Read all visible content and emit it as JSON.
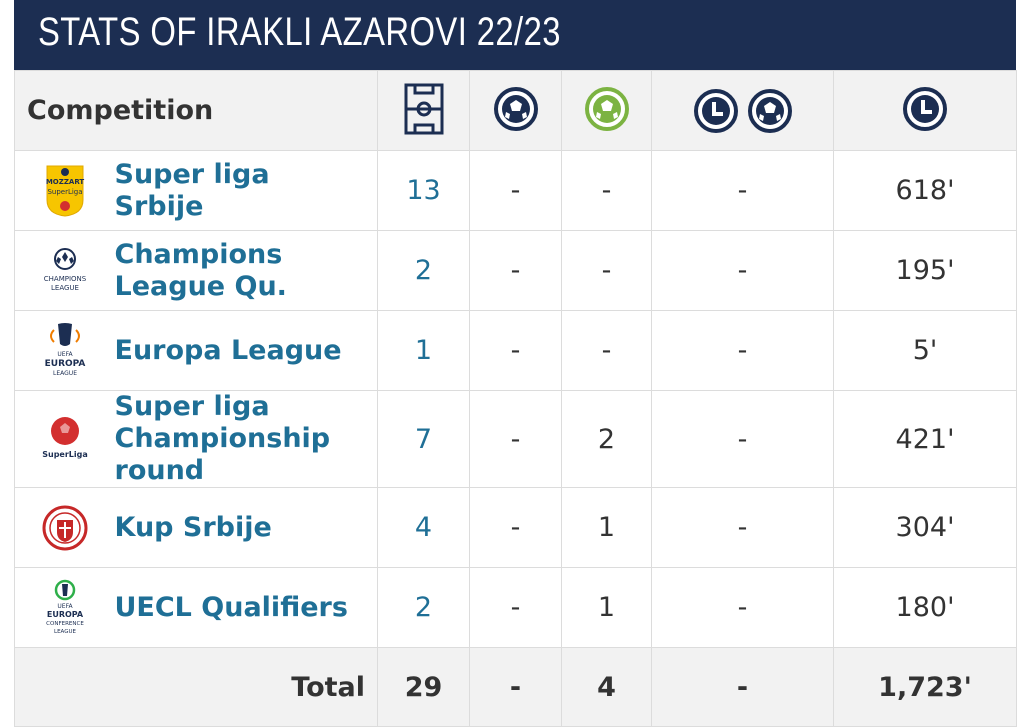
{
  "title": "STATS OF IRAKLI AZAROVI 22/23",
  "header": {
    "competition": "Competition",
    "icons": [
      "pitch-icon",
      "ball-icon",
      "green-ball-icon",
      "clock-icon",
      "ball-icon",
      "clock-icon"
    ]
  },
  "rows": [
    {
      "name_lines": [
        "Super liga",
        "Srbije"
      ],
      "logo": "mozzart-superliga-logo",
      "logo_text": [
        "MOZZART",
        "SuperLiga"
      ],
      "apps": "13",
      "c2": "-",
      "c3": "-",
      "c4": "-",
      "minutes": "618'"
    },
    {
      "name_lines": [
        "Champions",
        "League Qu."
      ],
      "logo": "champions-league-logo",
      "logo_text": [
        "CHAMPIONS",
        "LEAGUE"
      ],
      "apps": "2",
      "c2": "-",
      "c3": "-",
      "c4": "-",
      "minutes": "195'"
    },
    {
      "name_lines": [
        "Europa League"
      ],
      "logo": "europa-league-logo",
      "logo_text": [
        "UEFA",
        "EUROPA",
        "LEAGUE"
      ],
      "apps": "1",
      "c2": "-",
      "c3": "-",
      "c4": "-",
      "minutes": "5'"
    },
    {
      "name_lines": [
        "Super liga",
        "Championship",
        "round"
      ],
      "logo": "superliga-logo",
      "logo_text": [
        "SuperLiga"
      ],
      "apps": "7",
      "c2": "-",
      "c3": "2",
      "c4": "-",
      "minutes": "421'"
    },
    {
      "name_lines": [
        "Kup Srbije"
      ],
      "logo": "kup-srbije-logo",
      "logo_text": [],
      "apps": "4",
      "c2": "-",
      "c3": "1",
      "c4": "-",
      "minutes": "304'"
    },
    {
      "name_lines": [
        "UECL Qualifiers"
      ],
      "logo": "europa-conference-league-logo",
      "logo_text": [
        "UEFA",
        "EUROPA",
        "CONFERENCE",
        "LEAGUE"
      ],
      "apps": "2",
      "c2": "-",
      "c3": "1",
      "c4": "-",
      "minutes": "180'"
    }
  ],
  "total": {
    "label": "Total",
    "apps": "29",
    "c2": "-",
    "c3": "4",
    "c4": "-",
    "minutes": "1,723'"
  },
  "colors": {
    "header_bg": "#1c2e52",
    "link": "#1f6f96",
    "icon_navy": "#1c2e52",
    "icon_green": "#7cb342"
  }
}
